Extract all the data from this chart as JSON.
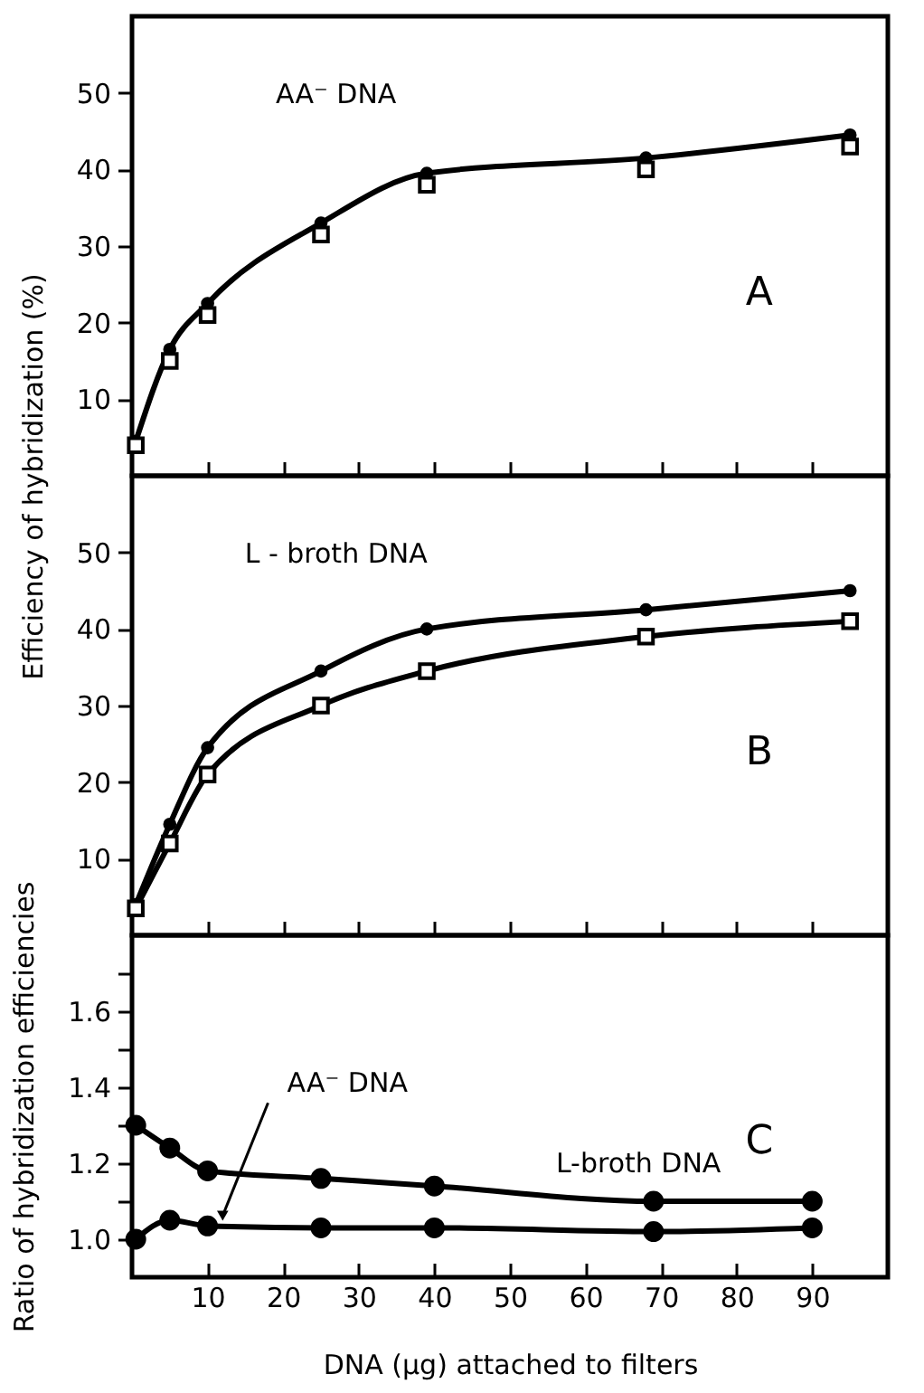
{
  "chart_data": [
    {
      "type": "line",
      "annotations": [
        "AA⁻ DNA",
        "A"
      ],
      "ylabel": "Efficiency of hybridization (%)",
      "x": [
        0.5,
        5,
        10,
        25,
        39,
        68,
        95
      ],
      "xlim": [
        0,
        100
      ],
      "xticks": [
        10,
        20,
        30,
        40,
        50,
        60,
        70,
        80,
        90
      ],
      "ylim": [
        0,
        60
      ],
      "yticks": [
        10,
        20,
        30,
        40,
        50
      ],
      "tick_labels": "y",
      "series": [
        {
          "type": "line",
          "marker": "circle",
          "color": "#000000",
          "values": [
            4.5,
            16.5,
            22.5,
            33,
            39.5,
            41.5,
            44.5
          ]
        },
        {
          "type": "scatter",
          "marker": "square",
          "color": "#000000",
          "values": [
            4,
            15,
            21,
            31.5,
            38,
            40,
            43
          ]
        }
      ]
    },
    {
      "type": "line",
      "annotations": [
        "L - broth DNA",
        "B"
      ],
      "x": [
        0.5,
        5,
        10,
        25,
        39,
        68,
        95
      ],
      "xlim": [
        0,
        100
      ],
      "xticks": [
        10,
        20,
        30,
        40,
        50,
        60,
        70,
        80,
        90
      ],
      "ylim": [
        0,
        60
      ],
      "yticks": [
        10,
        20,
        30,
        40,
        50
      ],
      "tick_labels": "y",
      "series": [
        {
          "type": "line",
          "marker": "circle",
          "color": "#000000",
          "values": [
            4,
            14.5,
            24.5,
            34.5,
            40,
            42.5,
            45
          ]
        },
        {
          "type": "line",
          "marker": "square",
          "color": "#000000",
          "values": [
            3.5,
            12,
            21,
            30,
            34.5,
            39,
            41
          ]
        }
      ]
    },
    {
      "type": "line",
      "annotations": [
        {
          "text": "AA⁻ DNA",
          "x": 12,
          "y": 1.035
        },
        {
          "text": "L-broth DNA",
          "x": 67,
          "y": 1.11
        },
        "C"
      ],
      "xlabel": "DNA (μg) attached to filters",
      "ylabel": "Ratio of hybridization efficiencies",
      "x": [
        0.5,
        5,
        10,
        25,
        40,
        69,
        90
      ],
      "xlim": [
        0,
        100
      ],
      "xticks": [
        10,
        20,
        30,
        40,
        50,
        60,
        70,
        80,
        90
      ],
      "ylim": [
        0.9,
        1.8
      ],
      "yticks": [
        {
          "value": 1,
          "label": "1.0"
        },
        {
          "value": 1.1,
          "label": null
        },
        1.2,
        {
          "value": 1.3,
          "label": null
        },
        1.4,
        {
          "value": 1.5,
          "label": null
        },
        1.6,
        {
          "value": 1.7,
          "label": null
        }
      ],
      "series": [
        {
          "type": "line",
          "marker": "circle",
          "color": "#000000",
          "values": [
            1.3,
            1.24,
            1.18,
            1.16,
            1.14,
            1.1,
            1.1
          ]
        },
        {
          "type": "line",
          "marker": "circle",
          "color": "#000000",
          "values": [
            1.0,
            1.05,
            1.035,
            1.03,
            1.03,
            1.02,
            1.03
          ]
        }
      ]
    }
  ]
}
